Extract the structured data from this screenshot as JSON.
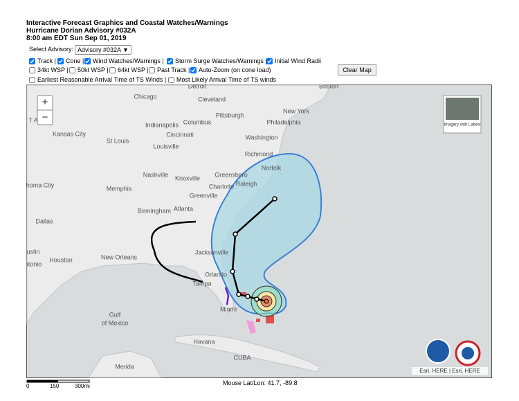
{
  "header": {
    "title": "Interactive Forecast Graphics and Coastal Watches/Warnings",
    "advisory": "Hurricane Dorian Advisory #032A",
    "time": "8:00 am EDT Sun Sep 01, 2019"
  },
  "controls": {
    "select_label": "Select Advisory:",
    "select_value": "Advisory #032A ▼",
    "layers": [
      {
        "label": "Track |",
        "checked": true
      },
      {
        "label": "Cone |",
        "checked": true
      },
      {
        "label": "Wind Watches/Warnings |",
        "checked": true
      },
      {
        "label": "Storm Surge Watches/Warnings |",
        "checked": true
      },
      {
        "label": "Initial Wind Radii",
        "checked": true
      },
      {
        "label": "34kt WSP |",
        "checked": false
      },
      {
        "label": "50kt WSP |",
        "checked": false
      },
      {
        "label": "64kt WSP |",
        "checked": false
      },
      {
        "label": "Past Track |",
        "checked": false
      },
      {
        "label": "Auto-Zoom (on cone load)",
        "checked": true
      },
      {
        "label": "Earliest Reasonable Arrival Time of TS Winds |",
        "checked": false
      },
      {
        "label": "Most Likely Arrival Time of TS winds",
        "checked": false
      }
    ],
    "clear_button": "Clear Map"
  },
  "map": {
    "zoom_in": "+",
    "zoom_out": "−",
    "basemap_toggle": "Imagery with Labels",
    "places": [
      "Detroit",
      "Boston",
      "Chicago",
      "Cleveland",
      "Pittsburgh",
      "New York",
      "Indianapolis",
      "Columbus",
      "Cincinnati",
      "Philadelphia",
      "Kansas City",
      "St Louis",
      "Louisville",
      "Washington",
      "Richmond",
      "Norfolk",
      "Nashville",
      "Knoxville",
      "Greensboro",
      "Raleigh",
      "Charlotte",
      "Memphis",
      "homa City",
      "Greenville",
      "Birmingham",
      "Atlanta",
      "Dallas",
      "Jacksonville",
      "ustin",
      "Houston",
      "ntonio",
      "New Orleans",
      "Orlando",
      "Tampa",
      "Miami",
      "Gulf",
      "of Mexico",
      "Havana",
      "CUBA",
      "Merida",
      "T A"
    ],
    "attribution": "Esri, HERE | Esri, HERE"
  },
  "footer": {
    "scale_labels": [
      "0",
      "150",
      "300mi"
    ],
    "mouse_position": "Mouse Lat/Lon: 41.7, -89.8"
  }
}
